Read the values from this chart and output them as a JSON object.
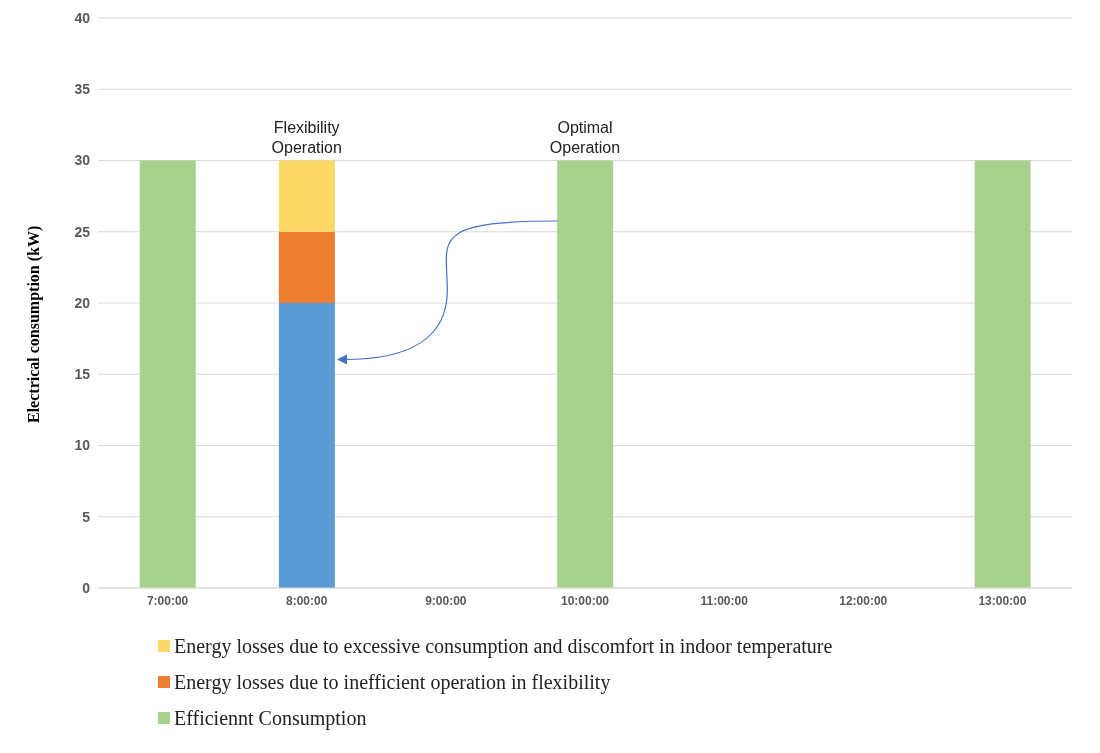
{
  "chart_data": {
    "type": "bar",
    "stacked": true,
    "ylabel": "Electrical consumption  (kW)",
    "categories": [
      "7:00:00",
      "8:00:00",
      "9:00:00",
      "10:00:00",
      "11:00:00",
      "12:00:00",
      "13:00:00"
    ],
    "series": [
      {
        "color": "#5b9bd5",
        "values": [
          null,
          20,
          null,
          null,
          null,
          null,
          null
        ]
      },
      {
        "name": "Efficiennt Consumption",
        "color": "#a9d18e",
        "values": [
          30,
          null,
          null,
          30,
          null,
          null,
          30
        ]
      },
      {
        "name": "Energy losses due to inefficient operation in flexibility",
        "color": "#ed7d31",
        "values": [
          null,
          5,
          null,
          null,
          null,
          null,
          null
        ]
      },
      {
        "name": "Energy losses due to excessive consumption and discomfort in indoor temperature",
        "color": "#ffd966",
        "values": [
          null,
          5,
          null,
          null,
          null,
          null,
          null
        ]
      }
    ],
    "ylim": [
      0,
      40
    ],
    "yticks": [
      0,
      5,
      10,
      15,
      20,
      25,
      30,
      35,
      40
    ],
    "grid": "y",
    "legend": "bottom",
    "annotations": [
      {
        "text": "Flexibility Operation",
        "x": "8:00:00",
        "y": 30
      },
      {
        "text": "Optimal Operation",
        "x": "10:00:00",
        "y": 30
      }
    ]
  }
}
